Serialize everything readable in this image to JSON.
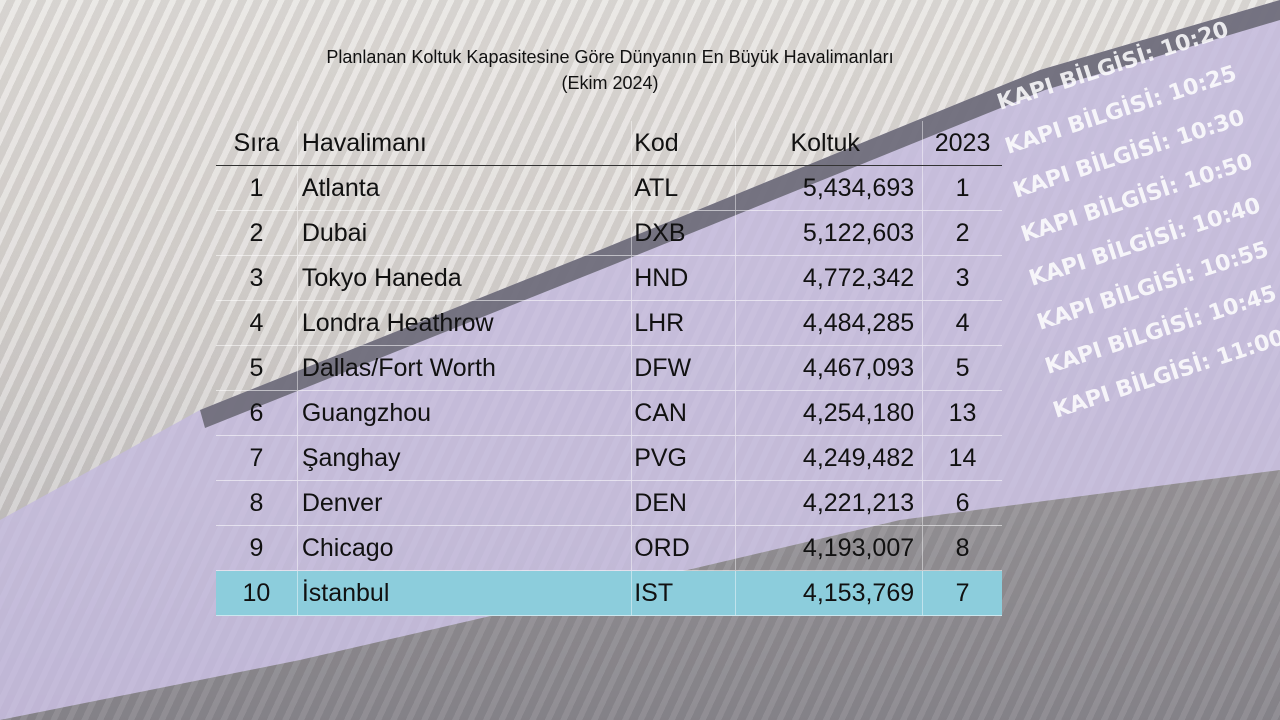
{
  "title": {
    "line1": "Planlanan Koltuk Kapasitesine Göre Dünyanın En Büyük Havalimanları",
    "line2": "(Ekim 2024)"
  },
  "chart_data": {
    "type": "table",
    "columns": [
      "Sıra",
      "Havalimanı",
      "Kod",
      "Koltuk",
      "2023"
    ],
    "rows": [
      {
        "rank": "1",
        "name": "Atlanta",
        "code": "ATL",
        "seats": "5,434,693",
        "prev": "1"
      },
      {
        "rank": "2",
        "name": "Dubai",
        "code": "DXB",
        "seats": "5,122,603",
        "prev": "2"
      },
      {
        "rank": "3",
        "name": "Tokyo Haneda",
        "code": "HND",
        "seats": "4,772,342",
        "prev": "3"
      },
      {
        "rank": "4",
        "name": "Londra Heathrow",
        "code": "LHR",
        "seats": "4,484,285",
        "prev": "4"
      },
      {
        "rank": "5",
        "name": "Dallas/Fort Worth",
        "code": "DFW",
        "seats": "4,467,093",
        "prev": "5"
      },
      {
        "rank": "6",
        "name": "Guangzhou",
        "code": "CAN",
        "seats": "4,254,180",
        "prev": "13"
      },
      {
        "rank": "7",
        "name": "Şanghay",
        "code": "PVG",
        "seats": "4,249,482",
        "prev": "14"
      },
      {
        "rank": "8",
        "name": "Denver",
        "code": "DEN",
        "seats": "4,221,213",
        "prev": "6"
      },
      {
        "rank": "9",
        "name": "Chicago",
        "code": "ORD",
        "seats": "4,193,007",
        "prev": "8"
      },
      {
        "rank": "10",
        "name": "İstanbul",
        "code": "IST",
        "seats": "4,153,769",
        "prev": "7"
      }
    ],
    "highlight_row": 10,
    "highlight_color": "#8ccddc"
  },
  "background": {
    "board_color": "#b7acd6",
    "board_lines": [
      "KAPI BİLGİSİ: 10:20",
      "KAPI BİLGİSİ: 10:25",
      "KAPI BİLGİSİ: 10:30",
      "KAPI BİLGİSİ: 10:50",
      "KAPI BİLGİSİ: 10:40",
      "KAPI BİLGİSİ: 10:55",
      "KAPI BİLGİSİ: 10:45",
      "KAPI BİLGİSİ: 11:00"
    ]
  }
}
